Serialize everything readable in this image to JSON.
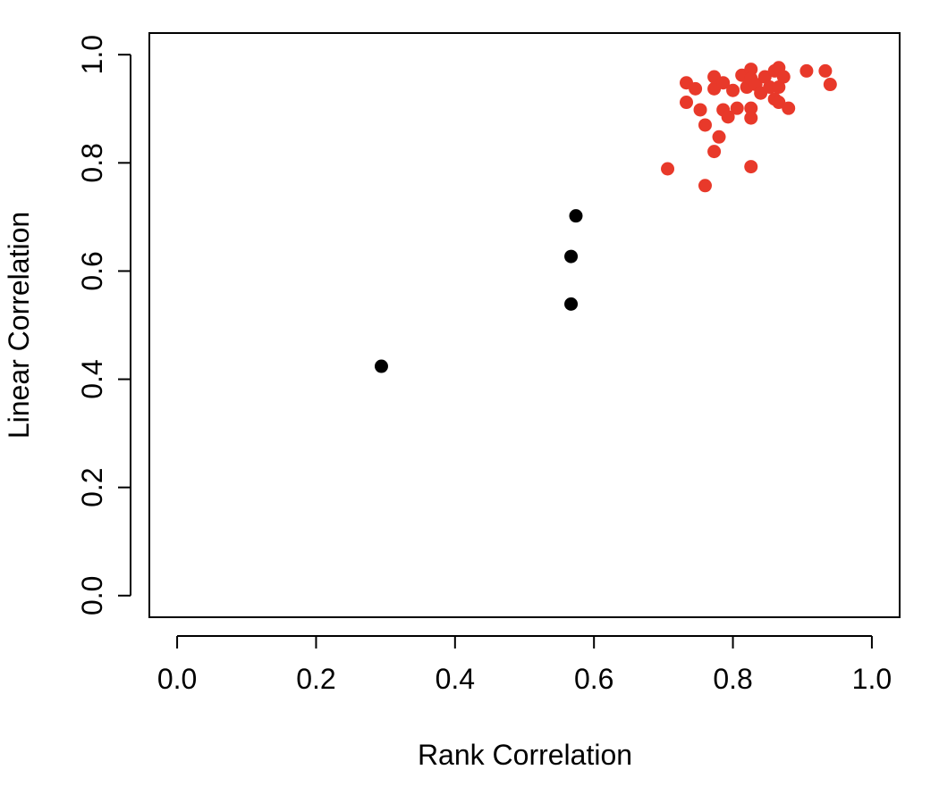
{
  "chart_data": {
    "type": "scatter",
    "title": "",
    "xlabel": "Rank Correlation",
    "ylabel": "Linear Correlation",
    "xlim": [
      -0.04,
      1.04
    ],
    "ylim": [
      -0.04,
      1.04
    ],
    "xticks": [
      0.0,
      0.2,
      0.4,
      0.6,
      0.8,
      1.0
    ],
    "xtick_labels": [
      "0.0",
      "0.2",
      "0.4",
      "0.6",
      "0.8",
      "1.0"
    ],
    "yticks": [
      0.0,
      0.2,
      0.4,
      0.6,
      0.8,
      1.0
    ],
    "ytick_labels": [
      "0.0",
      "0.2",
      "0.4",
      "0.6",
      "0.8",
      "1.0"
    ],
    "grid": false,
    "series": [
      {
        "color": "#000000",
        "points": [
          [
            0.294,
            0.424
          ],
          [
            0.567,
            0.539
          ],
          [
            0.567,
            0.627
          ],
          [
            0.574,
            0.702
          ]
        ]
      },
      {
        "color": "#e8392a",
        "points": [
          [
            0.706,
            0.789
          ],
          [
            0.76,
            0.758
          ],
          [
            0.773,
            0.821
          ],
          [
            0.826,
            0.793
          ],
          [
            0.78,
            0.848
          ],
          [
            0.76,
            0.87
          ],
          [
            0.733,
            0.912
          ],
          [
            0.753,
            0.898
          ],
          [
            0.733,
            0.948
          ],
          [
            0.746,
            0.937
          ],
          [
            0.773,
            0.937
          ],
          [
            0.773,
            0.959
          ],
          [
            0.786,
            0.948
          ],
          [
            0.786,
            0.898
          ],
          [
            0.793,
            0.885
          ],
          [
            0.8,
            0.934
          ],
          [
            0.806,
            0.901
          ],
          [
            0.813,
            0.962
          ],
          [
            0.82,
            0.94
          ],
          [
            0.826,
            0.973
          ],
          [
            0.826,
            0.956
          ],
          [
            0.826,
            0.901
          ],
          [
            0.826,
            0.883
          ],
          [
            0.833,
            0.945
          ],
          [
            0.84,
            0.929
          ],
          [
            0.846,
            0.959
          ],
          [
            0.853,
            0.94
          ],
          [
            0.86,
            0.97
          ],
          [
            0.86,
            0.918
          ],
          [
            0.866,
            0.976
          ],
          [
            0.866,
            0.94
          ],
          [
            0.866,
            0.912
          ],
          [
            0.873,
            0.959
          ],
          [
            0.88,
            0.901
          ],
          [
            0.906,
            0.97
          ],
          [
            0.933,
            0.97
          ],
          [
            0.94,
            0.945
          ]
        ]
      }
    ]
  }
}
